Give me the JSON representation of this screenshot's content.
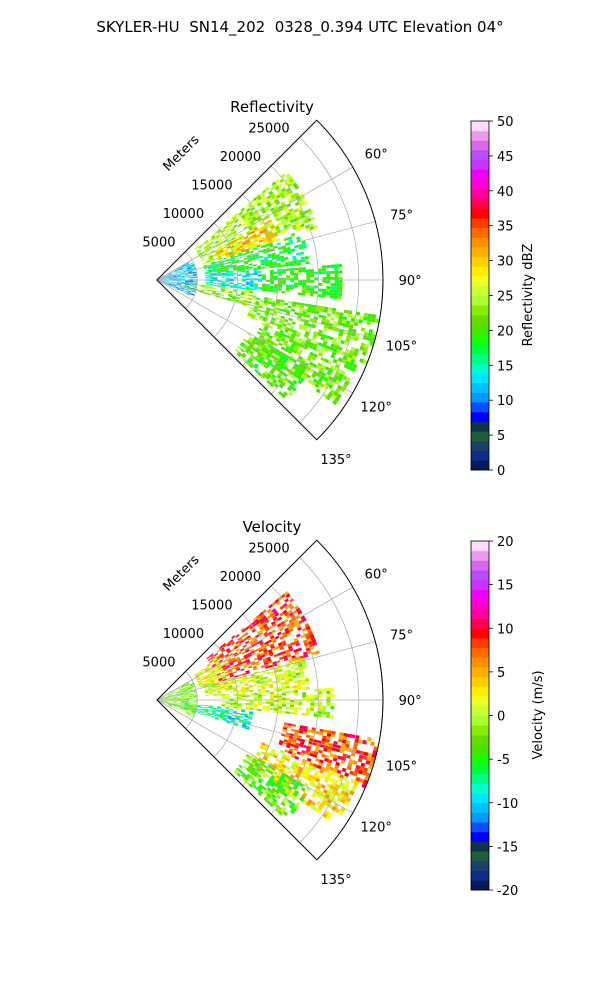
{
  "suptitle": "SKYLER-HU  SN14_202  0328_0.394 UTC Elevation 04°",
  "chart_data": [
    {
      "type": "heatmap",
      "subtype": "polar-sector (radar PPI)",
      "title": "Reflectivity",
      "range_label": "Meters",
      "range_ticks": [
        5000,
        10000,
        15000,
        20000,
        25000
      ],
      "range_tick_labels": [
        "5000",
        "10000",
        "15000",
        "20000",
        "25000"
      ],
      "rmax": 28000,
      "angle_ticks": [
        60,
        75,
        90,
        105,
        120,
        135
      ],
      "angle_tick_labels": [
        "60°",
        "75°",
        "90°",
        "105°",
        "120°",
        "135°"
      ],
      "theta_range": [
        45,
        135
      ],
      "grid": true,
      "colorbar": {
        "label": "Reflectivity dBZ",
        "min": 0,
        "max": 50,
        "ticks": [
          0,
          5,
          10,
          15,
          20,
          25,
          30,
          35,
          40,
          45,
          50
        ],
        "tick_labels": [
          "0",
          "5",
          "10",
          "15",
          "20",
          "25",
          "30",
          "35",
          "40",
          "45",
          "50"
        ],
        "colors": [
          "#061a57",
          "#0a2e8a",
          "#1c3f6e",
          "#1f5c3c",
          "#12314b",
          "#0000ff",
          "#0d4cff",
          "#0099ff",
          "#00c0ff",
          "#00e5ff",
          "#00ffcc",
          "#00ff80",
          "#00ff3a",
          "#1aff00",
          "#45e600",
          "#66dd00",
          "#88ee00",
          "#aaff33",
          "#ccff33",
          "#eeff22",
          "#ffee00",
          "#ffd000",
          "#ffb000",
          "#ff9000",
          "#ff6a00",
          "#ff3c00",
          "#ff0000",
          "#ff0050",
          "#ff0099",
          "#ff00cc",
          "#ee00ff",
          "#cc33ff",
          "#b84dff",
          "#dd66ee",
          "#ee99ee",
          "#ffd9ff"
        ]
      },
      "echo_regions": [
        {
          "theta": [
            50,
            72
          ],
          "r": [
            6000,
            21000
          ],
          "value": 24
        },
        {
          "theta": [
            62,
            72
          ],
          "r": [
            8000,
            16000
          ],
          "value": 30
        },
        {
          "theta": [
            72,
            84
          ],
          "r": [
            6000,
            19000
          ],
          "value": 18
        },
        {
          "theta": [
            84,
            96
          ],
          "r": [
            6000,
            13000
          ],
          "value": 14
        },
        {
          "theta": [
            85,
            96
          ],
          "r": [
            13000,
            23000
          ],
          "value": 19
        },
        {
          "theta": [
            96,
            106
          ],
          "r": [
            3000,
            12000
          ],
          "value": 23
        },
        {
          "theta": [
            99,
            112
          ],
          "r": [
            12000,
            28000
          ],
          "value": 22
        },
        {
          "theta": [
            112,
            125
          ],
          "r": [
            14000,
            27000
          ],
          "value": 22
        },
        {
          "theta": [
            120,
            133
          ],
          "r": [
            13000,
            22000
          ],
          "value": 21
        },
        {
          "theta": [
            60,
            115
          ],
          "r": [
            0,
            5000
          ],
          "value": 12
        }
      ]
    },
    {
      "type": "heatmap",
      "subtype": "polar-sector (radar PPI)",
      "title": "Velocity",
      "range_label": "Meters",
      "range_ticks": [
        5000,
        10000,
        15000,
        20000,
        25000
      ],
      "range_tick_labels": [
        "5000",
        "10000",
        "15000",
        "20000",
        "25000"
      ],
      "rmax": 28000,
      "angle_ticks": [
        60,
        75,
        90,
        105,
        120,
        135
      ],
      "angle_tick_labels": [
        "60°",
        "75°",
        "90°",
        "105°",
        "120°",
        "135°"
      ],
      "theta_range": [
        45,
        135
      ],
      "grid": true,
      "colorbar": {
        "label": "Velocity (m/s)",
        "min": -20,
        "max": 20,
        "ticks": [
          -20,
          -15,
          -10,
          -5,
          0,
          5,
          10,
          15,
          20
        ],
        "tick_labels": [
          "-20",
          "-15",
          "-10",
          "-5",
          "0",
          "5",
          "10",
          "15",
          "20"
        ],
        "colors": [
          "#061a57",
          "#0a2e8a",
          "#1c3f6e",
          "#1f5c3c",
          "#12314b",
          "#0000ff",
          "#0d4cff",
          "#0099ff",
          "#00c0ff",
          "#00e5ff",
          "#00ffcc",
          "#00ff80",
          "#00ff3a",
          "#1aff00",
          "#45e600",
          "#66dd00",
          "#88ee00",
          "#aaff33",
          "#ccff33",
          "#eeff22",
          "#ffee00",
          "#ffd000",
          "#ffb000",
          "#ff9000",
          "#ff6a00",
          "#ff3c00",
          "#ff0000",
          "#ff0050",
          "#ff0099",
          "#ff00cc",
          "#ee00ff",
          "#cc33ff",
          "#b84dff",
          "#dd66ee",
          "#ee99ee",
          "#ffd9ff"
        ]
      },
      "echo_regions": [
        {
          "theta": [
            50,
            74
          ],
          "r": [
            8000,
            21000
          ],
          "value": 8
        },
        {
          "theta": [
            55,
            74
          ],
          "r": [
            5500,
            9000
          ],
          "value": 2
        },
        {
          "theta": [
            74,
            86
          ],
          "r": [
            6000,
            19000
          ],
          "value": 1
        },
        {
          "theta": [
            86,
            96
          ],
          "r": [
            8000,
            22000
          ],
          "value": 0
        },
        {
          "theta": [
            96,
            108
          ],
          "r": [
            3000,
            12000
          ],
          "value": -8
        },
        {
          "theta": [
            100,
            113
          ],
          "r": [
            16000,
            28000
          ],
          "value": 8
        },
        {
          "theta": [
            112,
            125
          ],
          "r": [
            14000,
            27000
          ],
          "value": 3
        },
        {
          "theta": [
            120,
            133
          ],
          "r": [
            13000,
            22000
          ],
          "value": -3
        },
        {
          "theta": [
            60,
            115
          ],
          "r": [
            0,
            5000
          ],
          "value": -2
        }
      ]
    }
  ]
}
